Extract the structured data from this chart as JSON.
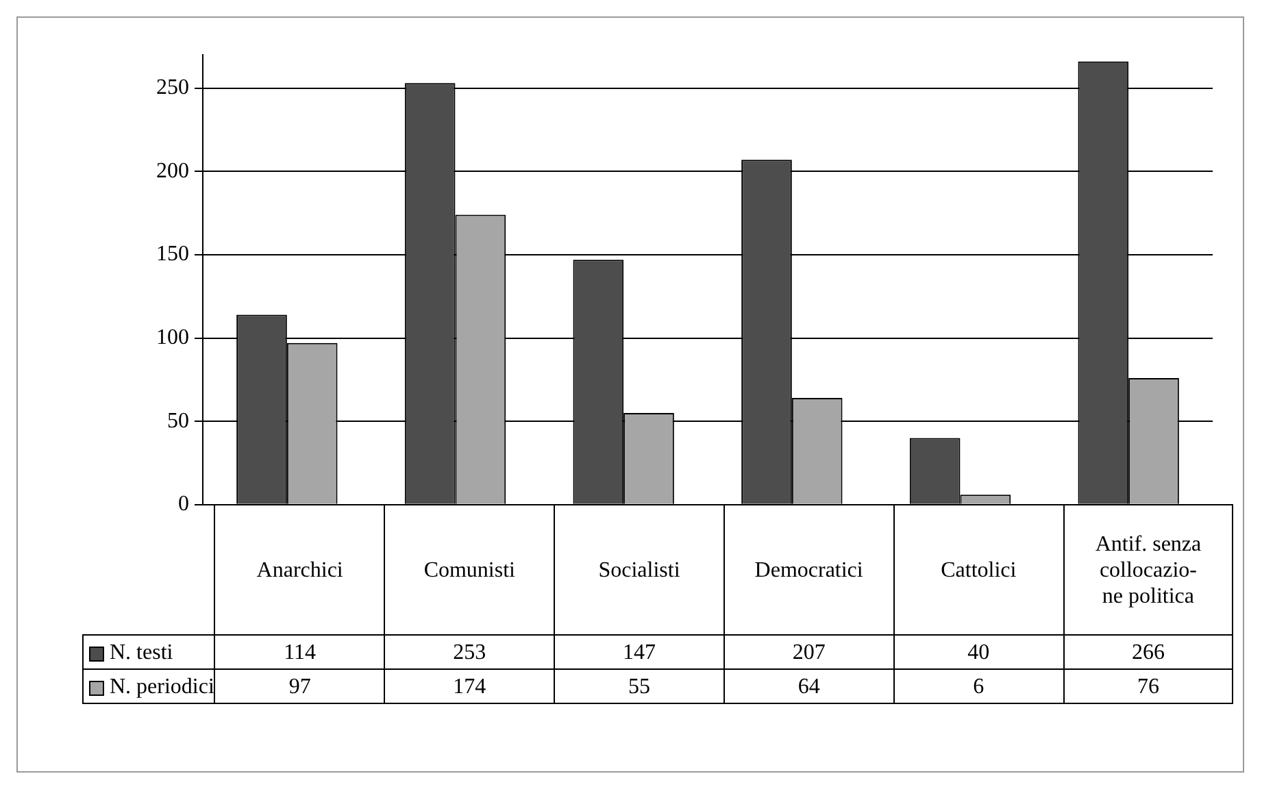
{
  "chart_data": {
    "type": "bar",
    "categories": [
      "Anarchici",
      "Comunisti",
      "Socialisti",
      "Democratici",
      "Cattolici",
      "Antif. senza\ncollocazio-\nne politica"
    ],
    "series": [
      {
        "name": "N. testi",
        "color": "#4d4d4d",
        "values": [
          114,
          253,
          147,
          207,
          40,
          266
        ]
      },
      {
        "name": "N. periodici",
        "color": "#a6a6a6",
        "values": [
          97,
          174,
          55,
          64,
          6,
          76
        ]
      }
    ],
    "ylim": [
      0,
      270
    ],
    "yticks": [
      0,
      50,
      100,
      150,
      200,
      250
    ],
    "grid": "y",
    "legend": "bottom",
    "data_labels": true
  }
}
